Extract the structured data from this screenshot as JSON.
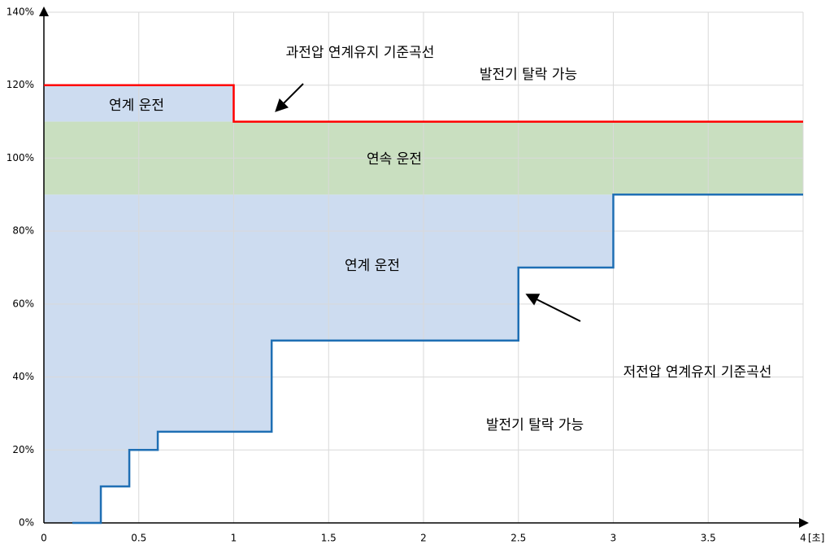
{
  "chart_data": {
    "type": "step",
    "xlim": [
      0,
      4
    ],
    "xticks": [
      0,
      0.5,
      1,
      1.5,
      2,
      2.5,
      3,
      3.5,
      4
    ],
    "xlabel": "[초]",
    "ylim": [
      0,
      140
    ],
    "yticks": [
      {
        "value": 0,
        "label": "0%"
      },
      {
        "value": 20,
        "label": "20%"
      },
      {
        "value": 40,
        "label": "40%"
      },
      {
        "value": 60,
        "label": "60%"
      },
      {
        "value": 80,
        "label": "80%"
      },
      {
        "value": 100,
        "label": "100%"
      },
      {
        "value": 120,
        "label": "120%"
      },
      {
        "value": 140,
        "label": "140%"
      }
    ],
    "grid": true,
    "band": {
      "y": [
        90,
        110
      ],
      "color": "#c9dfc0"
    },
    "fill_color": "#cddcf0",
    "series": [
      {
        "name": "과전압 연계유지 기준곡선",
        "color": "#ff0000",
        "x": [
          0,
          1,
          1,
          4
        ],
        "values": [
          120,
          120,
          110,
          110
        ]
      },
      {
        "name": "저전압 연계유지 기준곡선",
        "color": "#1f6fb4",
        "x": [
          0.15,
          0.3,
          0.3,
          0.45,
          0.45,
          0.6,
          0.6,
          1.2,
          1.2,
          2.5,
          2.5,
          3,
          3,
          4
        ],
        "values": [
          0,
          0,
          10,
          10,
          20,
          20,
          25,
          25,
          50,
          50,
          70,
          70,
          90,
          90
        ]
      }
    ],
    "annotations": [
      "과전압 연계유지 기준곡선",
      "발전기 탈락 가능",
      "연계 운전",
      "연속 운전",
      "연계 운전",
      "저전압 연계유지 기준곡선",
      "발전기 탈락 가능"
    ]
  }
}
